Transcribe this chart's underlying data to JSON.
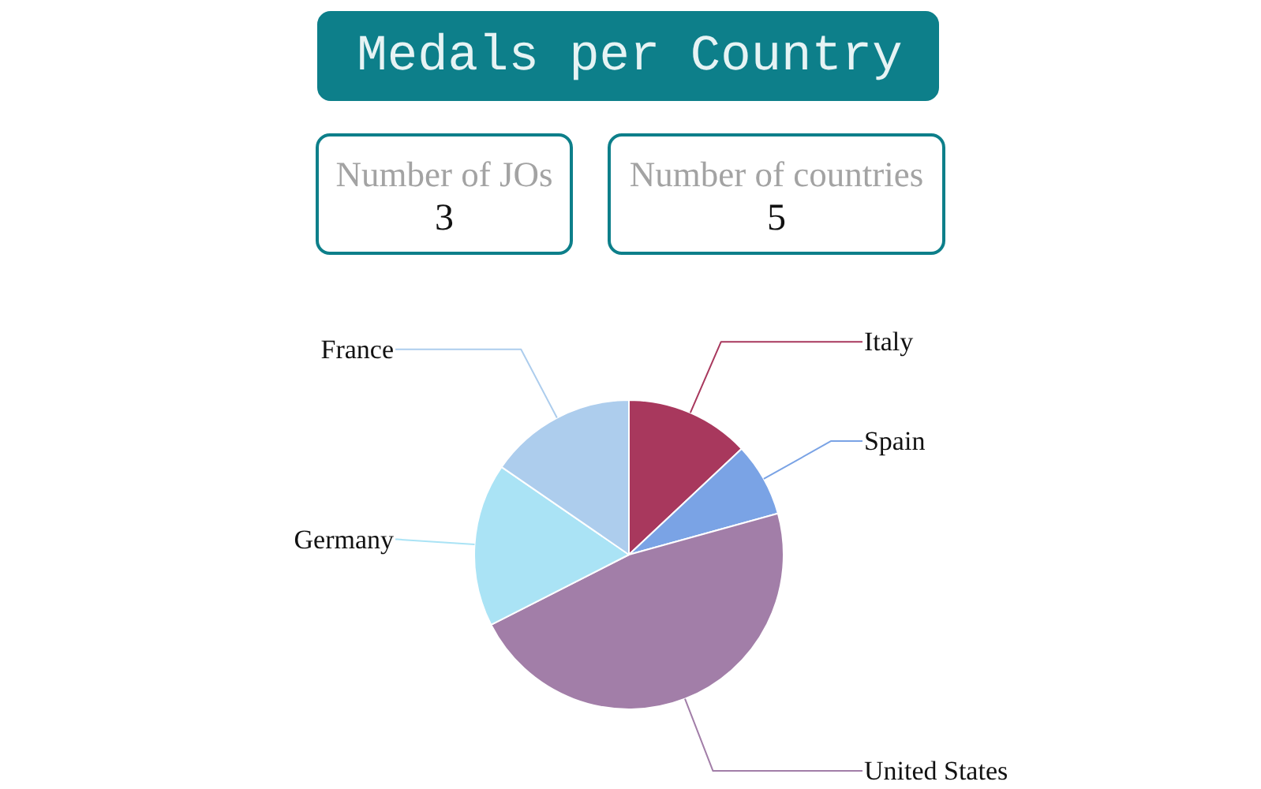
{
  "chart_data": [
    {
      "type": "other",
      "title": "Medals per Country"
    },
    {
      "type": "other",
      "title": "Number of JOs",
      "annotations": [
        "3"
      ]
    },
    {
      "type": "other",
      "title": "Number of countries",
      "annotations": [
        "5"
      ]
    },
    {
      "type": "pie",
      "categories": [
        "Italy",
        "Spain",
        "United States",
        "Germany",
        "France"
      ],
      "values": [
        13,
        7.7,
        46.8,
        17.1,
        15.4
      ],
      "colors": [
        "#a8385d",
        "#7aa3e5",
        "#a27ea8",
        "#aae3f5",
        "#adcded"
      ]
    }
  ]
}
